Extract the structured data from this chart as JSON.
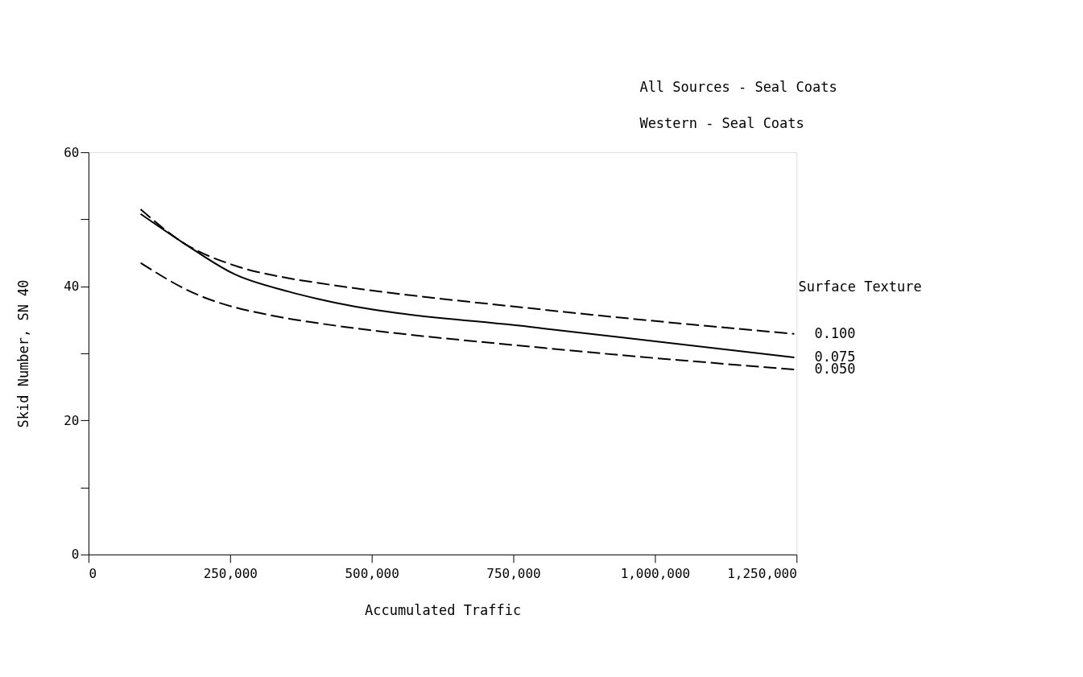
{
  "chart_data": {
    "type": "line",
    "xlabel": "Accumulated Traffic",
    "ylabel": "Skid Number, SN 40",
    "legend_title": "Surface Texture",
    "xlim": [
      0,
      1250000
    ],
    "ylim": [
      0,
      60
    ],
    "xticks": [
      0,
      {
        "value": 250000,
        "label": "250,000"
      },
      {
        "value": 500000,
        "label": "500,000"
      },
      {
        "value": 750000,
        "label": "750,000"
      },
      {
        "value": 1000000,
        "label": "1,000,000"
      },
      {
        "value": 1250000,
        "label": "1,250,000"
      }
    ],
    "yticks": [
      0,
      {
        "value": 10,
        "label": null
      },
      20,
      {
        "value": 30,
        "label": null
      },
      40,
      {
        "value": 50,
        "label": null
      },
      60
    ],
    "x": [
      92000,
      167000,
      258000,
      354000,
      406000,
      805000,
      1246000
    ],
    "series": [
      {
        "name": "0.100",
        "color": "#000000",
        "line_style": "dashed",
        "values": [
          51.5,
          46.5,
          43.1,
          41.2,
          40.5,
          36.5,
          32.9
        ]
      },
      {
        "name": "0.075",
        "color": "#000000",
        "line_style": "solid",
        "values": [
          50.8,
          46.5,
          41.8,
          39.2,
          38.1,
          33.7,
          29.4
        ]
      },
      {
        "name": "0.050",
        "color": "#000000",
        "line_style": "dashed",
        "x": [
          92000,
          173000,
          345000,
          406000,
          805000,
          1246000
        ],
        "values": [
          43.5,
          39.5,
          35.3,
          34.5,
          30.8,
          27.6
        ]
      }
    ],
    "annotations": [
      "All Sources - Seal Coats",
      "Western - Seal Coats"
    ],
    "grid": false,
    "legend": false
  }
}
